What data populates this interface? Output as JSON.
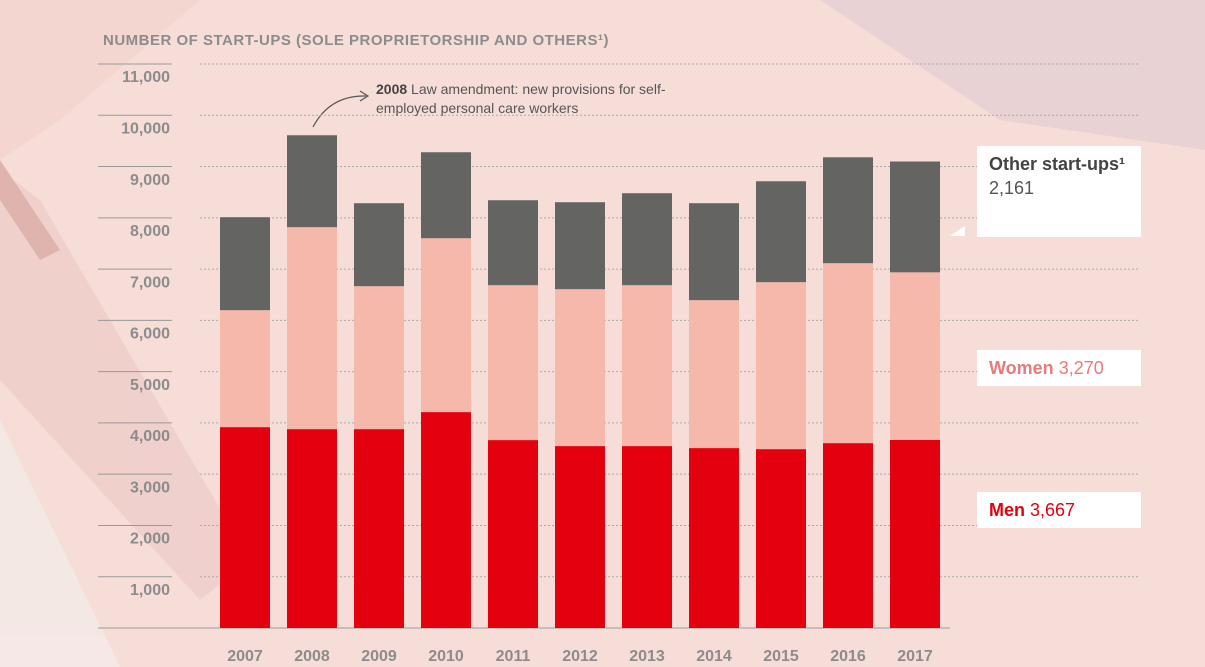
{
  "chart_data": {
    "type": "stacked_bar",
    "title": "NUMBER OF START-UPS (SOLE PROPRIETORSHIP AND OTHERS¹)",
    "annotation": {
      "year": "2008",
      "text": "Law amendment: new provisions for self-employed personal care workers"
    },
    "categories": [
      "2007",
      "2008",
      "2009",
      "2010",
      "2011",
      "2012",
      "2013",
      "2014",
      "2015",
      "2016",
      "2017"
    ],
    "series": [
      {
        "name": "Men",
        "color": "#e3000f",
        "label_color": "#e3000f",
        "values": [
          3918,
          3879,
          3879,
          4211,
          3665,
          3548,
          3548,
          3509,
          3489,
          3606,
          3667
        ],
        "value_labels": [
          null,
          null,
          null,
          null,
          null,
          null,
          null,
          null,
          null,
          null,
          "3,667"
        ]
      },
      {
        "name": "Women",
        "color": "#f5b8ab",
        "label_color": "#ea7a78",
        "values": [
          2281,
          3938,
          2788,
          3391,
          3021,
          3060,
          3138,
          2885,
          3256,
          3509,
          3270
        ],
        "value_labels": [
          null,
          null,
          null,
          null,
          null,
          null,
          null,
          null,
          null,
          null,
          "3,270"
        ]
      },
      {
        "name": "Other start-ups¹",
        "color": "#646462",
        "label_color": "#555555",
        "values": [
          1813,
          1793,
          1618,
          1677,
          1657,
          1696,
          1794,
          1891,
          1968,
          2066,
          2161
        ],
        "value_labels": [
          null,
          null,
          null,
          null,
          null,
          null,
          null,
          null,
          null,
          null,
          "2,161"
        ]
      }
    ],
    "ylim": [
      0,
      11000
    ],
    "yticks": [
      {
        "value": 1000,
        "label": "1,000"
      },
      {
        "value": 2000,
        "label": "2,000"
      },
      {
        "value": 3000,
        "label": "3,000"
      },
      {
        "value": 4000,
        "label": "4,000"
      },
      {
        "value": 5000,
        "label": "5,000"
      },
      {
        "value": 6000,
        "label": "6,000"
      },
      {
        "value": 7000,
        "label": "7,000"
      },
      {
        "value": 8000,
        "label": "8,000"
      },
      {
        "value": 9000,
        "label": "9,000"
      },
      {
        "value": 10000,
        "label": "10,000"
      },
      {
        "value": 11000,
        "label": "11,000"
      }
    ],
    "grid": true
  }
}
